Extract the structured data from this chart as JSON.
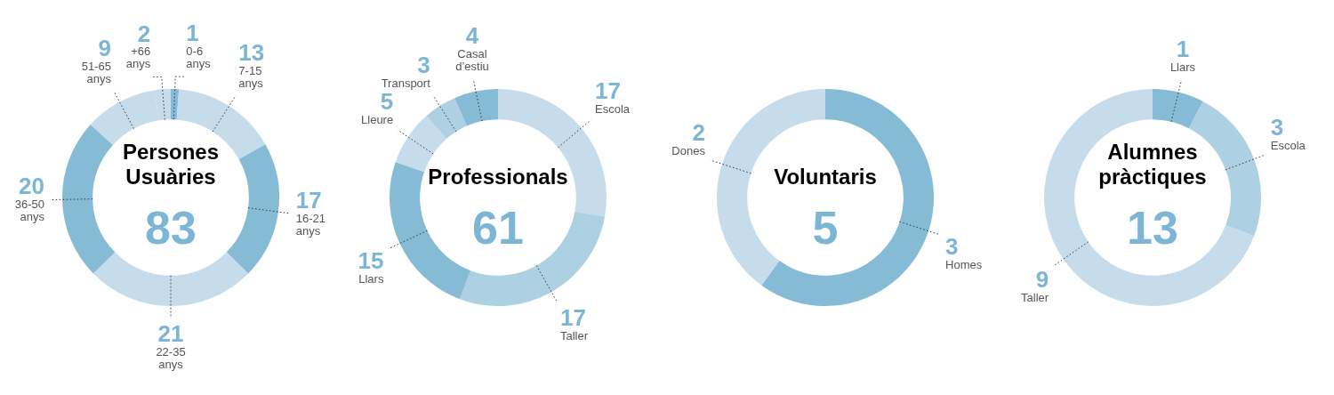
{
  "chart_data": [
    {
      "type": "donut",
      "title": "Persones Usuàries",
      "subtitle": "83",
      "categories": [
        "0-6 anys",
        "7-15 anys",
        "16-21 anys",
        "22-35 anys",
        "36-50 anys",
        "51-65 anys",
        "+66 anys"
      ],
      "values": [
        1,
        13,
        17,
        21,
        20,
        9,
        2
      ],
      "colors": [
        "#86bbd6",
        "#c6dceb",
        "#86bbd6",
        "#c6dceb",
        "#86bbd6",
        "#c6dceb",
        "#c6dceb"
      ],
      "data_labels": true,
      "legend": false
    },
    {
      "type": "donut",
      "title": "Professionals",
      "subtitle": "61",
      "categories": [
        "Escola",
        "Taller",
        "Llars",
        "Lleure",
        "Transport",
        "Casal d’estiu"
      ],
      "values": [
        17,
        17,
        15,
        5,
        3,
        4
      ],
      "colors": [
        "#c6dceb",
        "#add0e2",
        "#86bbd6",
        "#c6dceb",
        "#add0e2",
        "#86bbd6"
      ],
      "data_labels": true,
      "legend": false
    },
    {
      "type": "donut",
      "title": "Voluntaris",
      "subtitle": "5",
      "categories": [
        "Homes",
        "Dones"
      ],
      "values": [
        3,
        2
      ],
      "colors": [
        "#86bbd6",
        "#c6dceb"
      ],
      "data_labels": true,
      "legend": false
    },
    {
      "type": "donut",
      "title": "Alumnes pràctiques",
      "subtitle": "13",
      "categories": [
        "Llars",
        "Escola",
        "Taller"
      ],
      "values": [
        1,
        3,
        9
      ],
      "colors": [
        "#86bbd6",
        "#add0e2",
        "#c6dceb"
      ],
      "data_labels": true,
      "legend": false
    }
  ]
}
